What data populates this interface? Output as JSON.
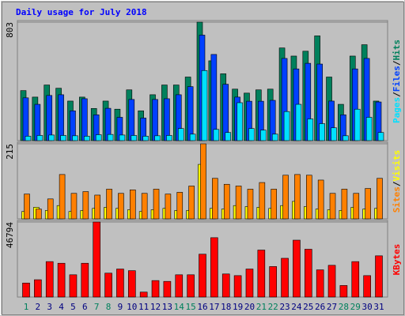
{
  "chart_data": [
    {
      "type": "bar",
      "title": "Daily usage for July 2018",
      "legend_separator": "/",
      "categories": [
        "1",
        "2",
        "3",
        "4",
        "5",
        "6",
        "7",
        "8",
        "9",
        "10",
        "11",
        "12",
        "13",
        "14",
        "15",
        "16",
        "17",
        "18",
        "19",
        "20",
        "21",
        "22",
        "23",
        "24",
        "25",
        "26",
        "27",
        "28",
        "29",
        "30",
        "31"
      ],
      "ylim": [
        0,
        803
      ],
      "yticks": [
        803
      ],
      "series": [
        {
          "name": "Pages",
          "color": "#00e0ff",
          "values": [
            30,
            35,
            38,
            35,
            33,
            30,
            40,
            42,
            38,
            35,
            30,
            33,
            35,
            82,
            44,
            475,
            76,
            55,
            257,
            82,
            71,
            44,
            197,
            246,
            147,
            115,
            87,
            33,
            213,
            158,
            55
          ]
        },
        {
          "name": "Files",
          "color": "#0040ff",
          "values": [
            290,
            246,
            306,
            311,
            202,
            284,
            175,
            219,
            158,
            279,
            153,
            279,
            284,
            311,
            366,
            715,
            584,
            382,
            295,
            267,
            267,
            273,
            557,
            486,
            524,
            519,
            268,
            175,
            486,
            557,
            262
          ]
        },
        {
          "name": "Hits",
          "color": "#00805c",
          "values": [
            339,
            295,
            377,
            355,
            268,
            295,
            218,
            268,
            213,
            344,
            202,
            311,
            377,
            377,
            431,
            803,
            541,
            453,
            349,
            322,
            344,
            349,
            628,
            573,
            606,
            710,
            431,
            246,
            573,
            650,
            268
          ]
        }
      ]
    },
    {
      "type": "bar",
      "legend_separator": "/",
      "categories": [
        "1",
        "2",
        "3",
        "4",
        "5",
        "6",
        "7",
        "8",
        "9",
        "10",
        "11",
        "12",
        "13",
        "14",
        "15",
        "16",
        "17",
        "18",
        "19",
        "20",
        "21",
        "22",
        "23",
        "24",
        "25",
        "26",
        "27",
        "28",
        "29",
        "30",
        "31"
      ],
      "ylim": [
        0,
        215
      ],
      "yticks": [
        215
      ],
      "series": [
        {
          "name": "Sites",
          "color": "#ff8000",
          "values": [
            71,
            28,
            57,
            127,
            73,
            78,
            68,
            85,
            73,
            83,
            73,
            85,
            71,
            76,
            94,
            215,
            116,
            99,
            94,
            85,
            104,
            85,
            125,
            127,
            125,
            111,
            73,
            85,
            73,
            87,
            116
          ]
        },
        {
          "name": "Visits",
          "color": "#ffff00",
          "values": [
            21,
            33,
            24,
            38,
            21,
            24,
            30,
            33,
            30,
            26,
            21,
            26,
            30,
            24,
            24,
            156,
            30,
            28,
            38,
            35,
            33,
            30,
            38,
            50,
            35,
            28,
            26,
            24,
            33,
            28,
            30
          ]
        }
      ]
    },
    {
      "type": "bar",
      "categories": [
        "1",
        "2",
        "3",
        "4",
        "5",
        "6",
        "7",
        "8",
        "9",
        "10",
        "11",
        "12",
        "13",
        "14",
        "15",
        "16",
        "17",
        "18",
        "19",
        "20",
        "21",
        "22",
        "23",
        "24",
        "25",
        "26",
        "27",
        "28",
        "29",
        "30",
        "31"
      ],
      "category_colors": [
        "#00805c",
        "#000080",
        "#000080",
        "#000080",
        "#000080",
        "#000080",
        "#00805c",
        "#00805c",
        "#000080",
        "#000080",
        "#000080",
        "#000080",
        "#000080",
        "#00805c",
        "#00805c",
        "#000080",
        "#000080",
        "#000080",
        "#000080",
        "#000080",
        "#00805c",
        "#00805c",
        "#000080",
        "#000080",
        "#000080",
        "#000080",
        "#000080",
        "#00805c",
        "#00805c",
        "#000080",
        "#000080"
      ],
      "ylim": [
        0,
        46794
      ],
      "yticks": [
        46794
      ],
      "series": [
        {
          "name": "KBytes",
          "color": "#ff0000",
          "values": [
            8738,
            10794,
            22102,
            21074,
            13878,
            21074,
            46794,
            14906,
            17476,
            16448,
            3084,
            10280,
            9766,
            13878,
            13878,
            26728,
            37008,
            14392,
            13364,
            17476,
            29298,
            19018,
            24158,
            35466,
            29812,
            16962,
            19789,
            7196,
            22102,
            13364,
            25700
          ]
        }
      ]
    }
  ]
}
